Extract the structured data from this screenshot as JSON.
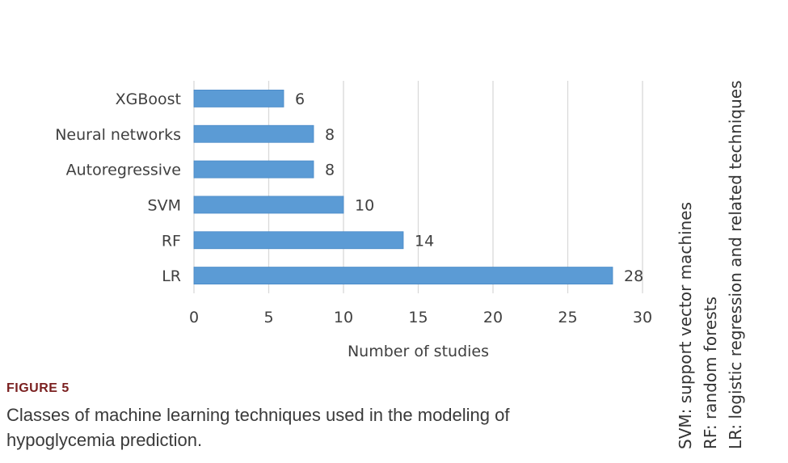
{
  "figure_label": "FIGURE 5",
  "caption": "Classes of machine learning techniques used in the modeling of hypoglycemia prediction.",
  "side_notes": [
    "SVM: support vector machines",
    "RF: random forests",
    "LR: logistic regression and related techniques"
  ],
  "chart_data": {
    "type": "bar",
    "orientation": "horizontal",
    "categories": [
      "XGBoost",
      "Neural networks",
      "Autoregressive",
      "SVM",
      "RF",
      "LR"
    ],
    "values": [
      6,
      8,
      8,
      10,
      14,
      28
    ],
    "value_labels": [
      "6",
      "8",
      "8",
      "10",
      "14",
      "28"
    ],
    "xlabel": "Number of studies",
    "ylabel": "",
    "xlim": [
      0,
      30
    ],
    "xticks": [
      0,
      5,
      10,
      15,
      20,
      25,
      30
    ],
    "xtick_labels": [
      "0",
      "5",
      "10",
      "15",
      "20",
      "25",
      "30"
    ],
    "grid": "vertical",
    "bar_color": "#5b9bd5",
    "grid_color": "#d9d9d9"
  }
}
